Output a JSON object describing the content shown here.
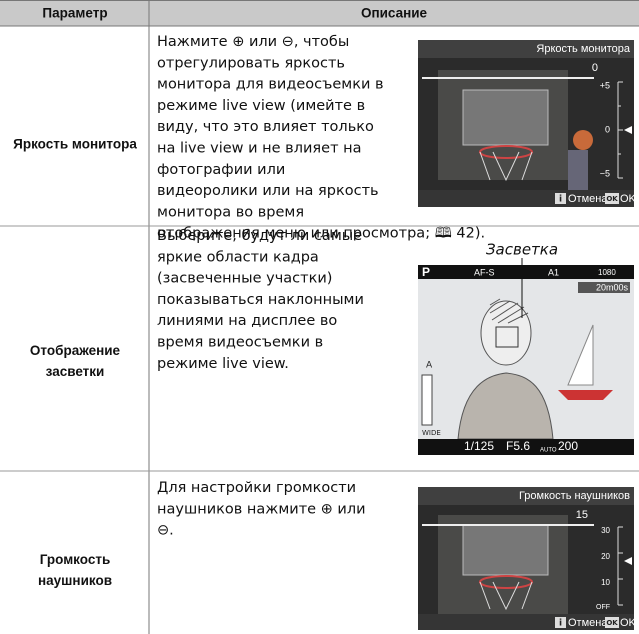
{
  "header": {
    "param": "Параметр",
    "desc": "Описание"
  },
  "rows": [
    {
      "param": [
        "Яркость монитора"
      ],
      "lines": [
        "Нажмите ⊕ или ⊖, чтобы",
        "отрегулировать яркость",
        "монитора для видеосъемки в",
        "режиме live view (имейте в",
        "виду, что это влияет только",
        "на live view и не влияет на",
        "фотографии или",
        "видеоролики или на яркость",
        "монитора во время",
        "отображения меню или просмотра; 🕮 42)."
      ],
      "screen": {
        "title": "Яркость монитора",
        "value": "0",
        "scale": [
          "+5",
          "0",
          "−5"
        ],
        "cancel_icon": "i",
        "cancel": "Отмена",
        "ok_icon": "OK",
        "ok": "OK"
      }
    },
    {
      "param": [
        "Отображение",
        "засветки"
      ],
      "lines": [
        "Выберите, будут ли самые",
        "яркие области кадра",
        "(засвеченные участки)",
        "показываться наклонными",
        "линиями на дисплее во",
        "время видеосъемки в",
        "режиме live view."
      ],
      "screen": {
        "callout": "Засветка",
        "mode": "P",
        "af": "AF-S",
        "picture": "A1",
        "size": "1080",
        "time": "20m00s",
        "shutter": "1/125",
        "aperture": "F5.6",
        "iso_label": "AUTO",
        "iso": "200",
        "audio": "A",
        "wide": "WIDE"
      }
    },
    {
      "param": [
        "Громкость",
        "наушников"
      ],
      "lines": [
        "Для настройки громкости",
        "наушников нажмите ⊕ или",
        "⊖."
      ],
      "screen": {
        "title": "Громкость наушников",
        "value": "15",
        "scale": [
          "30",
          "20",
          "10",
          "OFF"
        ],
        "cancel_icon": "i",
        "cancel": "Отмена",
        "ok_icon": "OK",
        "ok": "OK"
      }
    }
  ]
}
